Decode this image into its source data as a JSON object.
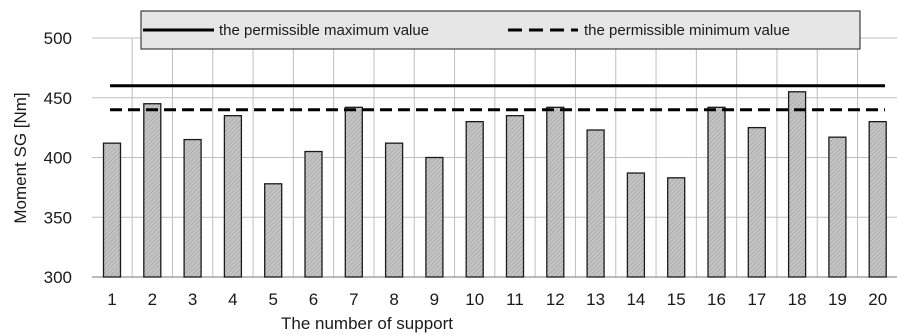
{
  "chart_data": {
    "type": "bar",
    "title": "",
    "xlabel": "The number of support",
    "ylabel": "Moment SG [Nm]",
    "ylim": [
      300,
      500
    ],
    "yticks": [
      300,
      350,
      400,
      450,
      500
    ],
    "grid": "horizontal",
    "legend_position": "top",
    "categories": [
      "1",
      "2",
      "3",
      "4",
      "5",
      "6",
      "7",
      "8",
      "9",
      "10",
      "11",
      "12",
      "13",
      "14",
      "15",
      "16",
      "17",
      "18",
      "19",
      "20"
    ],
    "series": [
      {
        "values": [
          412,
          445,
          415,
          435,
          378,
          405,
          442,
          412,
          400,
          430,
          435,
          442,
          423,
          387,
          383,
          442,
          425,
          455,
          417,
          430
        ]
      }
    ],
    "reference_lines": [
      {
        "name": "the permissible maximum value",
        "value": 460,
        "style": "solid"
      },
      {
        "name": "the permissible minimum value",
        "value": 440,
        "style": "dashed"
      }
    ],
    "colors": {
      "bar_fill": "#b8b8b8",
      "bar_stroke": "#1a1a1a",
      "grid": "#bfbfbf",
      "legend_bg": "#e6e6e6",
      "line": "#000000"
    }
  }
}
